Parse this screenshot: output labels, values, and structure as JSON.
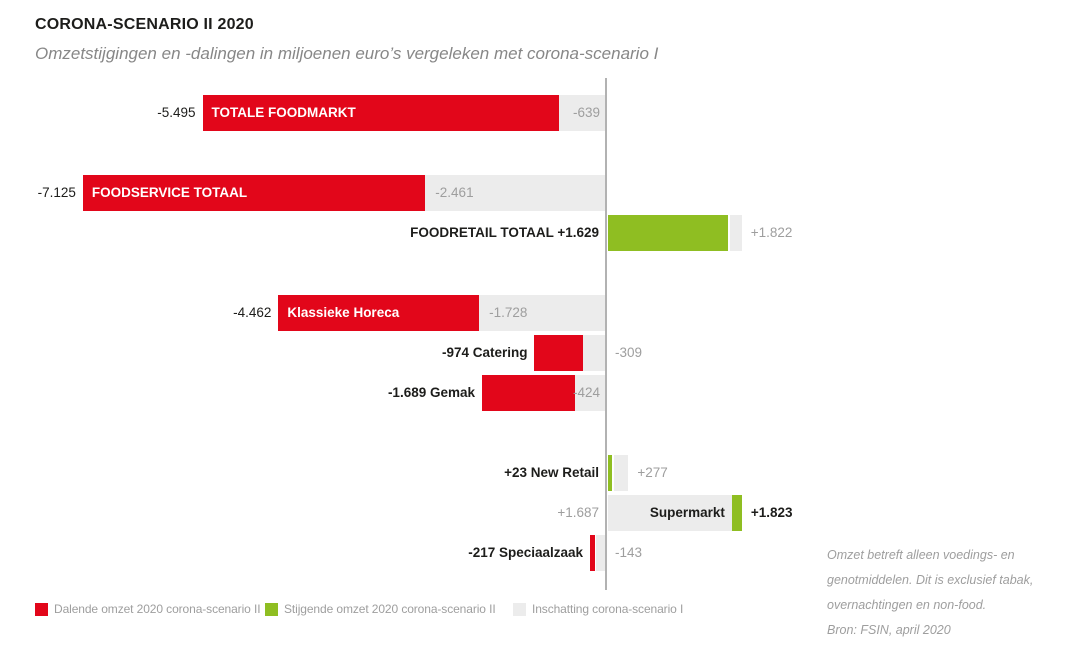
{
  "header": {
    "title": "CORONA-SCENARIO II 2020",
    "subtitle": "Omzetstijgingen en -dalingen in miljoenen euro’s vergeleken met corona-scenario I"
  },
  "chart_data": {
    "type": "bar",
    "orientation": "horizontal-diverging",
    "unit": "miljoenen euro's",
    "baseline_value": 0,
    "grid": false,
    "colors": {
      "decrease": "#e2061a",
      "increase": "#8fbe22",
      "scenario1": "#ececec",
      "axis": "#b2b2b2",
      "grey_text": "#9e9e9e",
      "black_text": "#1d1d1b"
    },
    "rows": [
      {
        "name": "TOTALE FOODMARKT",
        "scenario2": -5495,
        "scenario1": -639,
        "labels": {
          "left": "-5.495",
          "inside": "TOTALE FOODMARKT",
          "s1": "-639"
        },
        "opts": {
          "left_bold": false,
          "s1_pos": "inEnd"
        }
      },
      {
        "name": "FOODSERVICE TOTAAL",
        "scenario2": -7125,
        "scenario1": -2461,
        "labels": {
          "left": "-7.125",
          "inside": "FOODSERVICE TOTAAL",
          "s1": "-2.461"
        },
        "opts": {
          "left_bold": false,
          "s1_pos": "inStart",
          "group_start": true
        }
      },
      {
        "name": "FOODRETAIL TOTAAL",
        "scenario2": 1629,
        "scenario1": 1822,
        "labels": {
          "left": "FOODRETAIL TOTAAL  +1.629",
          "s1": "+1.822"
        },
        "opts": {
          "left_bold": true,
          "s1_pos": "outRight",
          "seam": 2
        }
      },
      {
        "name": "Klassieke Horeca",
        "scenario2": -4462,
        "scenario1": -1728,
        "labels": {
          "left": "-4.462",
          "inside": "Klassieke Horeca",
          "s1": "-1.728"
        },
        "opts": {
          "left_bold": false,
          "s1_pos": "inStart",
          "group_start": true
        }
      },
      {
        "name": "Catering",
        "scenario2": -974,
        "scenario1": -309,
        "labels": {
          "left": "-974 Catering",
          "s1": "-309"
        },
        "opts": {
          "left_bold": true,
          "s1_pos": "outRight"
        }
      },
      {
        "name": "Gemak",
        "scenario2": -1689,
        "scenario1": -424,
        "labels": {
          "left": "-1.689 Gemak",
          "s1": "-424"
        },
        "opts": {
          "left_bold": true,
          "s1_pos": "inEnd"
        }
      },
      {
        "name": "New Retail",
        "scenario2": 23,
        "scenario1": 277,
        "labels": {
          "left": "+23 New Retail",
          "s1": "+277"
        },
        "opts": {
          "left_bold": true,
          "s1_pos": "outRight",
          "seam": 2,
          "group_start": true
        }
      },
      {
        "name": "Supermarkt",
        "scenario2": 1823,
        "scenario1": 1687,
        "labels": {
          "left": "+1.687",
          "inside": "Supermarkt",
          "right": "+1.823"
        },
        "opts": {
          "left_grey": true,
          "inside_in_s1": true
        }
      },
      {
        "name": "Speciaalzaak",
        "scenario2": -217,
        "scenario1": -143,
        "labels": {
          "left": "-217 Speciaalzaak",
          "s1": "-143"
        },
        "opts": {
          "left_bold": true,
          "s1_pos": "outRight"
        }
      }
    ]
  },
  "legend": {
    "items": [
      {
        "label": "Dalende omzet 2020 corona-scenario II",
        "colorKey": "decrease"
      },
      {
        "label": "Stijgende omzet 2020 corona-scenario II",
        "colorKey": "increase"
      },
      {
        "label": "Inschatting corona-scenario I",
        "colorKey": "scenario1"
      }
    ]
  },
  "notes": {
    "lines": [
      "Omzet betreft alleen voedings- en",
      "genotmiddelen. Dit is exclusief tabak,",
      "overnachtingen en non-food.",
      "Bron: FSIN, april 2020"
    ]
  }
}
